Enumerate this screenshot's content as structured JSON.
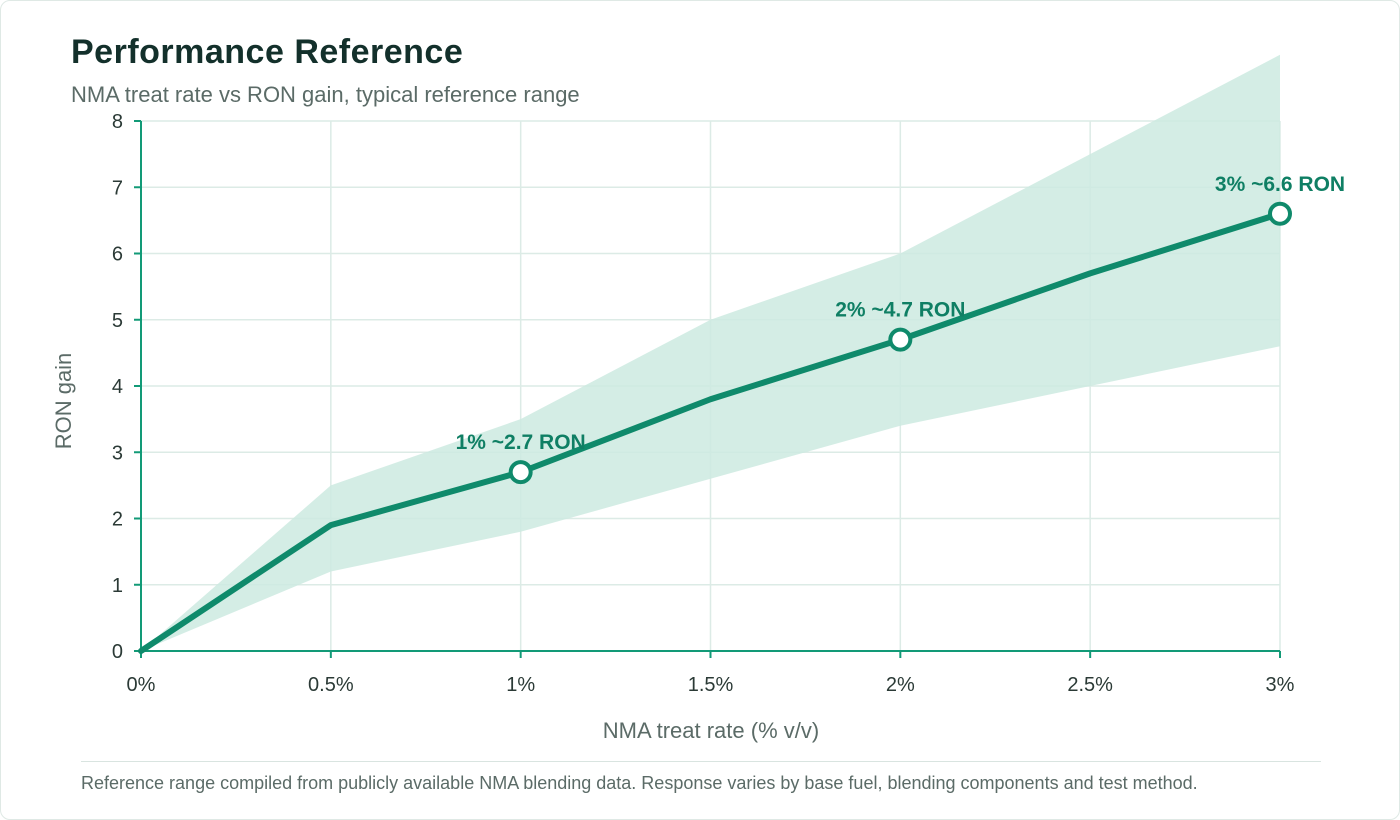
{
  "header": {
    "title": "Performance Reference",
    "subtitle": "NMA treat rate vs RON gain, typical reference range"
  },
  "footnote": "Reference range compiled from publicly available NMA blending data. Response varies by base fuel, blending components and test method.",
  "colors": {
    "line": "#0f8a6b",
    "band": "#cdeae0",
    "grid": "#dcebe6",
    "axis": "#129a77",
    "annotation": "#0f7f64"
  },
  "chart_data": {
    "type": "line",
    "xlabel": "NMA treat rate (% v/v)",
    "ylabel": "RON gain",
    "xlim": [
      0,
      3
    ],
    "ylim": [
      0,
      8
    ],
    "x_ticks": [
      0,
      0.5,
      1,
      1.5,
      2,
      2.5,
      3
    ],
    "x_tick_labels": [
      "0%",
      "0.5%",
      "1%",
      "1.5%",
      "2%",
      "2.5%",
      "3%"
    ],
    "y_ticks": [
      0,
      1,
      2,
      3,
      4,
      5,
      6,
      7,
      8
    ],
    "y_tick_labels": [
      "0",
      "1",
      "2",
      "3",
      "4",
      "5",
      "6",
      "7",
      "8"
    ],
    "grid": true,
    "series": [
      {
        "x": [
          0,
          0.5,
          1,
          1.5,
          2,
          2.5,
          3
        ],
        "y": [
          0,
          1.9,
          2.7,
          3.8,
          4.7,
          5.7,
          6.6
        ]
      }
    ],
    "band": {
      "x": [
        0,
        0.5,
        1,
        1.5,
        2,
        2.5,
        3
      ],
      "lower": [
        0,
        1.2,
        1.8,
        2.6,
        3.4,
        4.0,
        4.6
      ],
      "upper": [
        0,
        2.5,
        3.5,
        5.0,
        6.0,
        7.5,
        9.0
      ]
    },
    "markers": [
      {
        "x": 1,
        "y": 2.7,
        "label": "1% ~2.7 RON"
      },
      {
        "x": 2,
        "y": 4.7,
        "label": "2% ~4.7 RON"
      },
      {
        "x": 3,
        "y": 6.6,
        "label": "3% ~6.6 RON"
      }
    ]
  }
}
